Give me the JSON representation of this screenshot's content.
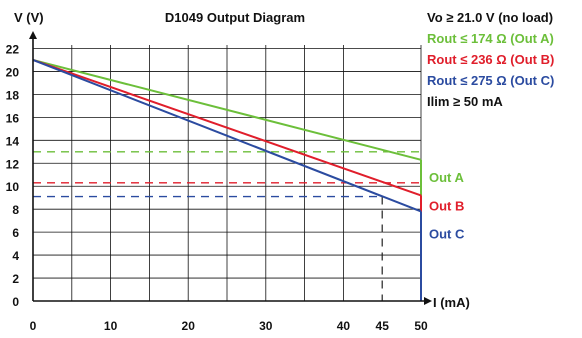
{
  "chart_data": {
    "type": "line",
    "title": "D1049 Output Diagram",
    "ylabel": "V (V)",
    "xlabel": "I (mA)",
    "xlim": [
      0,
      50
    ],
    "ylim": [
      0,
      23
    ],
    "grid": true,
    "x_ticks": [
      0,
      10,
      20,
      30,
      40,
      45,
      50
    ],
    "y_ticks": [
      0,
      2,
      4,
      6,
      8,
      10,
      12,
      14,
      16,
      18,
      20,
      22
    ],
    "series": [
      {
        "name": "Out A",
        "color": "#6cbf3a",
        "x": [
          0,
          50
        ],
        "y": [
          21.0,
          12.3
        ]
      },
      {
        "name": "Out B",
        "color": "#e01e2b",
        "x": [
          0,
          50
        ],
        "y": [
          21.0,
          9.2
        ]
      },
      {
        "name": "Out C",
        "color": "#2b4ba0",
        "x": [
          0,
          50
        ],
        "y": [
          21.0,
          7.8
        ]
      }
    ],
    "reference_lines": [
      {
        "color": "#6cbf3a",
        "y": 13.0,
        "x_range": [
          0,
          50
        ]
      },
      {
        "color": "#e01e2b",
        "y": 10.3,
        "x_range": [
          0,
          50
        ]
      },
      {
        "color": "#2b4ba0",
        "y": 9.1,
        "x_range": [
          0,
          45
        ]
      },
      {
        "color": "#222222",
        "x": 45,
        "y_range": [
          0,
          9.1
        ]
      }
    ],
    "current_limit_segments": [
      {
        "color": "#6cbf3a",
        "x": 50,
        "y_range": [
          9.2,
          12.3
        ]
      },
      {
        "color": "#e01e2b",
        "x": 50,
        "y_range": [
          7.8,
          9.2
        ]
      },
      {
        "color": "#2b4ba0",
        "x": 50,
        "y_range": [
          0,
          7.8
        ]
      }
    ],
    "right_labels": [
      {
        "text": "Out A",
        "color": "#6cbf3a",
        "y": 10.8
      },
      {
        "text": "Out B",
        "color": "#e01e2b",
        "y": 8.3
      },
      {
        "text": "Out C",
        "color": "#2b4ba0",
        "y": 5.9
      }
    ],
    "annotations": [
      {
        "text": "Vo ≥ 21.0 V (no load)",
        "color": "#111111"
      },
      {
        "text": "Rout ≤ 174 Ω (Out A)",
        "color": "#6cbf3a"
      },
      {
        "text": "Rout ≤ 236 Ω (Out B)",
        "color": "#e01e2b"
      },
      {
        "text": "Rout ≤ 275 Ω (Out C)",
        "color": "#2b4ba0"
      },
      {
        "text": "Ilim ≥ 50 mA",
        "color": "#111111"
      }
    ]
  }
}
